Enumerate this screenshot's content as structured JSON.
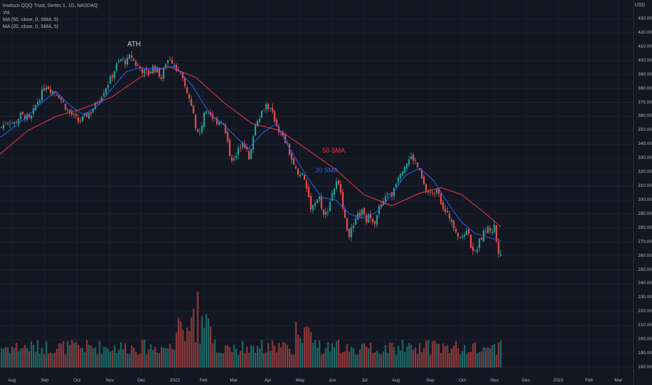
{
  "legend": {
    "title": "Invesco QQQ Trust, Series 1, 1D, NASDAQ",
    "vol": "Vol",
    "ma50": "MA (50, close, 0, SMA, 5)",
    "ma20": "MA (20, close, 0, SMA, 5)"
  },
  "currency": "USD",
  "annotations": {
    "ath": "ATH",
    "sma50": "50 SMA",
    "sma20": "20 SMA"
  },
  "colors": {
    "up": "#26a69a",
    "down": "#ef5350",
    "ma50": "#f23645",
    "ma20": "#2962ff",
    "background": "#131722"
  },
  "chart_data": {
    "type": "candlestick",
    "yaxis": {
      "ticks": [
        430,
        420,
        410,
        400,
        390,
        380,
        370,
        360,
        350,
        340,
        330,
        320,
        310,
        300,
        290,
        280,
        270,
        260,
        250,
        240,
        230,
        220,
        210,
        200,
        190,
        180
      ],
      "range": [
        175,
        433
      ]
    },
    "xaxis": {
      "ticks": [
        "Aug",
        "Sep",
        "Oct",
        "Nov",
        "Dec",
        "2022",
        "Feb",
        "Mar",
        "Apr",
        "May",
        "Jun",
        "Jul",
        "Aug",
        "Sep",
        "Oct",
        "Nov",
        "Dec",
        "2023",
        "Feb",
        "Mar"
      ]
    },
    "close_path": [
      {
        "t": 0,
        "v": 352
      },
      {
        "t": 10,
        "v": 357
      },
      {
        "t": 20,
        "v": 355
      },
      {
        "t": 28,
        "v": 361
      },
      {
        "t": 36,
        "v": 360
      },
      {
        "t": 42,
        "v": 357
      },
      {
        "t": 50,
        "v": 368
      },
      {
        "t": 58,
        "v": 376
      },
      {
        "t": 64,
        "v": 383
      },
      {
        "t": 72,
        "v": 379
      },
      {
        "t": 82,
        "v": 376
      },
      {
        "t": 90,
        "v": 369
      },
      {
        "t": 96,
        "v": 364
      },
      {
        "t": 104,
        "v": 360
      },
      {
        "t": 112,
        "v": 356
      },
      {
        "t": 120,
        "v": 360
      },
      {
        "t": 130,
        "v": 364
      },
      {
        "t": 140,
        "v": 372
      },
      {
        "t": 150,
        "v": 381
      },
      {
        "t": 158,
        "v": 388
      },
      {
        "t": 165,
        "v": 396
      },
      {
        "t": 172,
        "v": 401
      },
      {
        "t": 180,
        "v": 399
      },
      {
        "t": 186,
        "v": 404
      },
      {
        "t": 192,
        "v": 398
      },
      {
        "t": 198,
        "v": 395
      },
      {
        "t": 206,
        "v": 392
      },
      {
        "t": 212,
        "v": 391
      },
      {
        "t": 218,
        "v": 396
      },
      {
        "t": 224,
        "v": 393
      },
      {
        "t": 230,
        "v": 387
      },
      {
        "t": 236,
        "v": 399
      },
      {
        "t": 242,
        "v": 402
      },
      {
        "t": 248,
        "v": 398
      },
      {
        "t": 254,
        "v": 393
      },
      {
        "t": 260,
        "v": 386
      },
      {
        "t": 266,
        "v": 378
      },
      {
        "t": 272,
        "v": 368
      },
      {
        "t": 278,
        "v": 355
      },
      {
        "t": 284,
        "v": 345
      },
      {
        "t": 290,
        "v": 360
      },
      {
        "t": 296,
        "v": 367
      },
      {
        "t": 302,
        "v": 360
      },
      {
        "t": 310,
        "v": 356
      },
      {
        "t": 316,
        "v": 358
      },
      {
        "t": 322,
        "v": 346
      },
      {
        "t": 328,
        "v": 332
      },
      {
        "t": 334,
        "v": 328
      },
      {
        "t": 340,
        "v": 336
      },
      {
        "t": 346,
        "v": 344
      },
      {
        "t": 352,
        "v": 334
      },
      {
        "t": 356,
        "v": 326
      },
      {
        "t": 360,
        "v": 346
      },
      {
        "t": 366,
        "v": 358
      },
      {
        "t": 372,
        "v": 362
      },
      {
        "t": 378,
        "v": 369
      },
      {
        "t": 384,
        "v": 366
      },
      {
        "t": 390,
        "v": 360
      },
      {
        "t": 396,
        "v": 352
      },
      {
        "t": 402,
        "v": 346
      },
      {
        "t": 408,
        "v": 341
      },
      {
        "t": 414,
        "v": 332
      },
      {
        "t": 420,
        "v": 322
      },
      {
        "t": 426,
        "v": 320
      },
      {
        "t": 432,
        "v": 318
      },
      {
        "t": 438,
        "v": 307
      },
      {
        "t": 444,
        "v": 294
      },
      {
        "t": 450,
        "v": 300
      },
      {
        "t": 456,
        "v": 302
      },
      {
        "t": 462,
        "v": 288
      },
      {
        "t": 468,
        "v": 294
      },
      {
        "t": 474,
        "v": 306
      },
      {
        "t": 480,
        "v": 312
      },
      {
        "t": 486,
        "v": 308
      },
      {
        "t": 492,
        "v": 285
      },
      {
        "t": 498,
        "v": 276
      },
      {
        "t": 504,
        "v": 280
      },
      {
        "t": 510,
        "v": 288
      },
      {
        "t": 516,
        "v": 292
      },
      {
        "t": 522,
        "v": 285
      },
      {
        "t": 528,
        "v": 290
      },
      {
        "t": 534,
        "v": 284
      },
      {
        "t": 540,
        "v": 294
      },
      {
        "t": 546,
        "v": 296
      },
      {
        "t": 552,
        "v": 306
      },
      {
        "t": 558,
        "v": 302
      },
      {
        "t": 564,
        "v": 312
      },
      {
        "t": 570,
        "v": 320
      },
      {
        "t": 576,
        "v": 324
      },
      {
        "t": 582,
        "v": 328
      },
      {
        "t": 588,
        "v": 331
      },
      {
        "t": 594,
        "v": 326
      },
      {
        "t": 600,
        "v": 318
      },
      {
        "t": 606,
        "v": 308
      },
      {
        "t": 612,
        "v": 306
      },
      {
        "t": 618,
        "v": 303
      },
      {
        "t": 624,
        "v": 311
      },
      {
        "t": 630,
        "v": 298
      },
      {
        "t": 636,
        "v": 290
      },
      {
        "t": 642,
        "v": 288
      },
      {
        "t": 648,
        "v": 282
      },
      {
        "t": 654,
        "v": 275
      },
      {
        "t": 660,
        "v": 272
      },
      {
        "t": 666,
        "v": 280
      },
      {
        "t": 672,
        "v": 268
      },
      {
        "t": 678,
        "v": 262
      },
      {
        "t": 684,
        "v": 270
      },
      {
        "t": 690,
        "v": 276
      },
      {
        "t": 696,
        "v": 280
      },
      {
        "t": 702,
        "v": 278
      },
      {
        "t": 706,
        "v": 282
      },
      {
        "t": 710,
        "v": 265
      },
      {
        "t": 714,
        "v": 262
      },
      {
        "t": 717,
        "v": 268
      }
    ],
    "ma20_path": [
      {
        "t": 0,
        "v": 345
      },
      {
        "t": 30,
        "v": 356
      },
      {
        "t": 60,
        "v": 370
      },
      {
        "t": 80,
        "v": 378
      },
      {
        "t": 100,
        "v": 368
      },
      {
        "t": 120,
        "v": 361
      },
      {
        "t": 140,
        "v": 368
      },
      {
        "t": 160,
        "v": 380
      },
      {
        "t": 180,
        "v": 392
      },
      {
        "t": 200,
        "v": 395
      },
      {
        "t": 225,
        "v": 394
      },
      {
        "t": 250,
        "v": 396
      },
      {
        "t": 275,
        "v": 382
      },
      {
        "t": 300,
        "v": 362
      },
      {
        "t": 320,
        "v": 354
      },
      {
        "t": 340,
        "v": 344
      },
      {
        "t": 355,
        "v": 337
      },
      {
        "t": 375,
        "v": 348
      },
      {
        "t": 395,
        "v": 355
      },
      {
        "t": 415,
        "v": 336
      },
      {
        "t": 440,
        "v": 316
      },
      {
        "t": 460,
        "v": 302
      },
      {
        "t": 480,
        "v": 300
      },
      {
        "t": 500,
        "v": 290
      },
      {
        "t": 520,
        "v": 287
      },
      {
        "t": 540,
        "v": 292
      },
      {
        "t": 560,
        "v": 304
      },
      {
        "t": 580,
        "v": 318
      },
      {
        "t": 600,
        "v": 323
      },
      {
        "t": 620,
        "v": 314
      },
      {
        "t": 640,
        "v": 298
      },
      {
        "t": 660,
        "v": 284
      },
      {
        "t": 680,
        "v": 276
      },
      {
        "t": 700,
        "v": 273
      },
      {
        "t": 716,
        "v": 271
      }
    ],
    "ma50_path": [
      {
        "t": 0,
        "v": 333
      },
      {
        "t": 40,
        "v": 350
      },
      {
        "t": 80,
        "v": 360
      },
      {
        "t": 120,
        "v": 366
      },
      {
        "t": 160,
        "v": 374
      },
      {
        "t": 200,
        "v": 388
      },
      {
        "t": 240,
        "v": 396
      },
      {
        "t": 280,
        "v": 388
      },
      {
        "t": 320,
        "v": 370
      },
      {
        "t": 360,
        "v": 355
      },
      {
        "t": 400,
        "v": 350
      },
      {
        "t": 440,
        "v": 336
      },
      {
        "t": 480,
        "v": 322
      },
      {
        "t": 520,
        "v": 304
      },
      {
        "t": 560,
        "v": 296
      },
      {
        "t": 600,
        "v": 305
      },
      {
        "t": 630,
        "v": 309
      },
      {
        "t": 660,
        "v": 304
      },
      {
        "t": 690,
        "v": 292
      },
      {
        "t": 716,
        "v": 281
      }
    ]
  }
}
